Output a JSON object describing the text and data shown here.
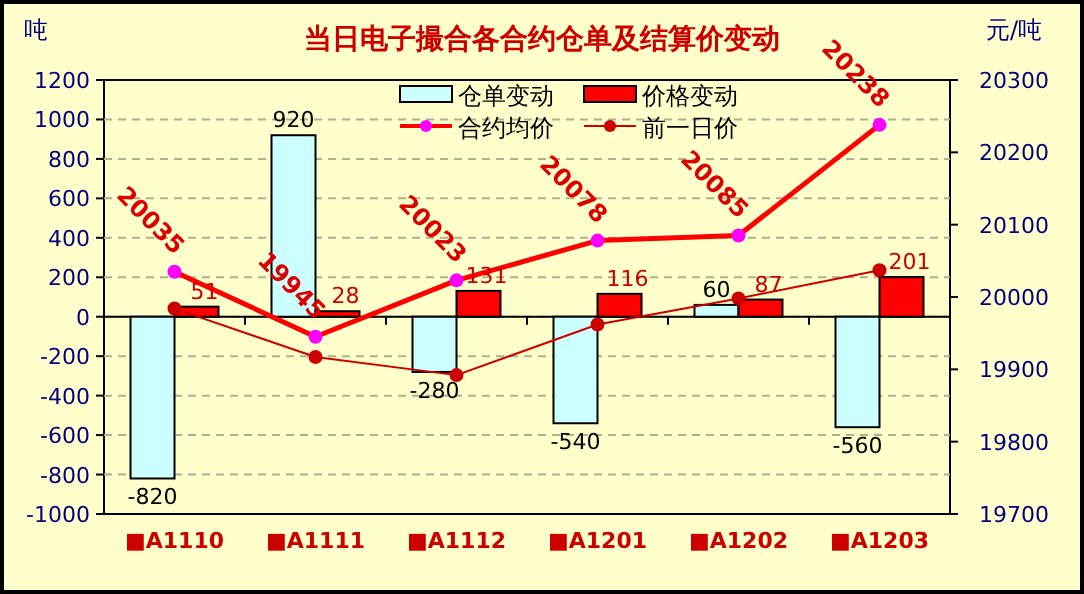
{
  "chart_data": {
    "type": "bar",
    "title": "当日电子撮合各合约仓单及结算价变动",
    "ylabel": "吨",
    "y2label": "元/吨",
    "categories": [
      "■A1110",
      "■A1111",
      "■A1112",
      "■A1201",
      "■A1202",
      "■A1203"
    ],
    "series": [
      {
        "name": "仓单变动",
        "color": "#ccffff",
        "values": [
          -820,
          920,
          -280,
          -540,
          60,
          -560
        ],
        "value_labels": [
          "-820",
          "920",
          "-280",
          "-540",
          "60",
          "-560"
        ]
      },
      {
        "name": "价格变动",
        "color": "#ff0000",
        "values": [
          51,
          28,
          131,
          116,
          87,
          201
        ],
        "value_labels": [
          "51",
          "28",
          "131",
          "116",
          "87",
          "201"
        ]
      },
      {
        "name": "合约均价",
        "type": "line",
        "axis": "y2",
        "color": "#ff0000",
        "marker": "circle",
        "values": [
          20035,
          19945,
          20023,
          20078,
          20085,
          20238
        ],
        "value_labels": [
          "20035",
          "19945",
          "20023",
          "20078",
          "20085",
          "20238"
        ]
      },
      {
        "name": "前一日价",
        "type": "line",
        "axis": "y2",
        "color": "#cc0000",
        "marker": "circle",
        "values": [
          19984,
          19917,
          19892,
          19962,
          19998,
          20037
        ]
      }
    ],
    "ylim": [
      -1000,
      1200
    ],
    "yticks": [
      -1000,
      -800,
      -600,
      -400,
      -200,
      0,
      200,
      400,
      600,
      800,
      1000,
      1200
    ],
    "y2lim": [
      19700,
      20300
    ],
    "y2ticks": [
      19700,
      19800,
      19900,
      20000,
      20100,
      20200,
      20300
    ],
    "grid": "y",
    "legend": "top"
  }
}
